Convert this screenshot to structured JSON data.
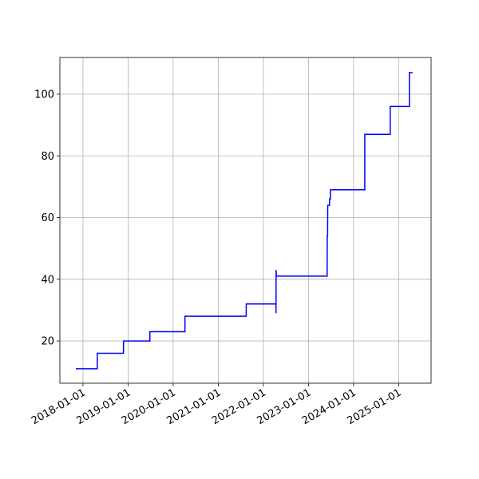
{
  "chart_data": {
    "type": "line",
    "x": [
      "2017-11-04",
      "2018-04-27",
      "2018-04-27",
      "2018-11-25",
      "2018-11-25",
      "2019-06-27",
      "2019-06-27",
      "2020-04-06",
      "2020-04-06",
      "2021-08-15",
      "2021-08-15",
      "2022-04-13",
      "2022-04-13",
      "2022-04-14",
      "2022-04-16",
      "2023-06-01",
      "2023-06-02",
      "2023-06-05",
      "2023-06-06",
      "2023-06-20",
      "2023-06-21",
      "2023-06-27",
      "2023-06-28",
      "2024-04-01",
      "2024-04-01",
      "2024-10-24",
      "2024-10-24",
      "2025-03-28",
      "2025-03-28",
      "2025-04-23"
    ],
    "series": [
      {
        "color": "#0000ff",
        "values": [
          11,
          11,
          16,
          16,
          20,
          20,
          23,
          23,
          28,
          28,
          32,
          32,
          29,
          43,
          41,
          41,
          54,
          54,
          64,
          64,
          66,
          66,
          69,
          69,
          87,
          87,
          96,
          96,
          107,
          107
        ]
      }
    ],
    "xlim": [
      "2017-06-28",
      "2025-09-20"
    ],
    "xticks": [
      "2018-01-01",
      "2019-01-01",
      "2020-01-01",
      "2021-01-01",
      "2022-01-01",
      "2023-01-01",
      "2024-01-01",
      "2025-01-01"
    ],
    "ylim": [
      6.3,
      111.9
    ],
    "yticks": [
      20,
      40,
      60,
      80,
      100
    ],
    "grid": true
  }
}
